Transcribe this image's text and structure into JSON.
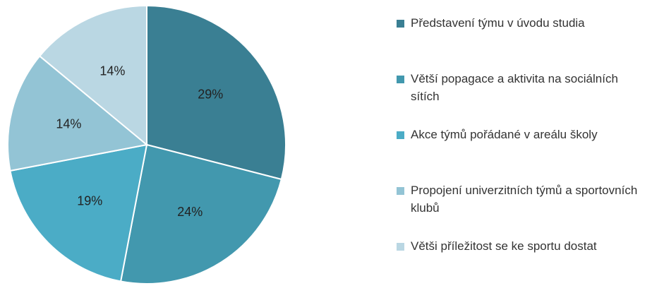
{
  "chart_data": {
    "type": "pie",
    "categories": [
      "Představení týmu v úvodu studia",
      "Větší popagace a aktivita na sociálních sítích",
      "Akce týmů pořádané v areálu školy",
      "Propojení univerzitních týmů a sportovních klubů",
      "Větši příležitost se ke sportu dostat"
    ],
    "values": [
      29,
      24,
      19,
      14,
      14
    ],
    "value_labels": [
      "29%",
      "24%",
      "19%",
      "14%",
      "14%"
    ],
    "colors": [
      "#3a7f93",
      "#4298ae",
      "#4bacc6",
      "#93c4d5",
      "#bad7e3"
    ],
    "legend": "right"
  }
}
